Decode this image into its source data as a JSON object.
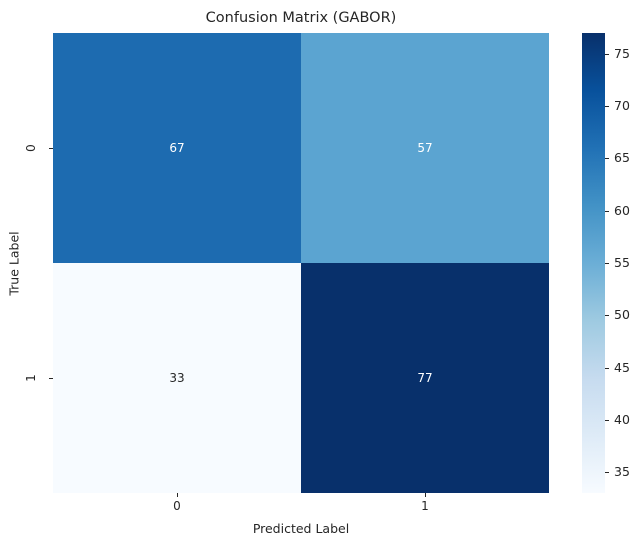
{
  "chart_data": {
    "type": "heatmap",
    "title": "Confusion Matrix (GABOR)",
    "xlabel": "Predicted Label",
    "ylabel": "True Label",
    "x_tick_labels": [
      "0",
      "1"
    ],
    "y_tick_labels": [
      "0",
      "1"
    ],
    "matrix": [
      [
        67,
        57
      ],
      [
        33,
        77
      ]
    ],
    "cell_colors": [
      [
        "#1d6bb0",
        "#5ba4d1"
      ],
      [
        "#f7fbff",
        "#08306b"
      ]
    ],
    "annotation_colors": [
      [
        "#ffffff",
        "#ffffff"
      ],
      [
        "#262626",
        "#ffffff"
      ]
    ],
    "colormap": "Blues",
    "grid": false,
    "colorbar": {
      "min": 33,
      "max": 77,
      "ticks": [
        35,
        40,
        45,
        50,
        55,
        60,
        65,
        70,
        75
      ],
      "gradient_stops_bottom_to_top": [
        "#f7fbff",
        "#deebf7",
        "#c6dbef",
        "#9ecae1",
        "#6baed6",
        "#4292c6",
        "#2171b5",
        "#08519c",
        "#08306b"
      ]
    }
  }
}
